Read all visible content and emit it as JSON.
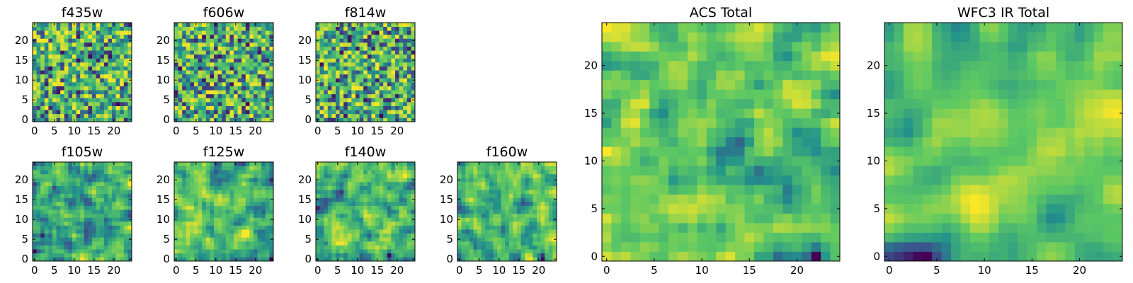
{
  "chart_data": [
    {
      "type": "heatmap",
      "title": "f435w",
      "grid_size": 25,
      "xlim": [
        0,
        24
      ],
      "ylim": [
        0,
        24
      ],
      "xticks": [
        "0",
        "5",
        "10",
        "15",
        "20"
      ],
      "yticks": [
        "0",
        "5",
        "10",
        "15",
        "20"
      ],
      "colormap": [
        "#440154",
        "#3b528b",
        "#21918c",
        "#5ec962",
        "#fde725"
      ],
      "seed": 11,
      "smooth": 0
    },
    {
      "type": "heatmap",
      "title": "f606w",
      "grid_size": 25,
      "xlim": [
        0,
        24
      ],
      "ylim": [
        0,
        24
      ],
      "xticks": [
        "0",
        "5",
        "10",
        "15",
        "20"
      ],
      "yticks": [
        "0",
        "5",
        "10",
        "15",
        "20"
      ],
      "colormap": [
        "#440154",
        "#3b528b",
        "#21918c",
        "#5ec962",
        "#fde725"
      ],
      "seed": 23,
      "smooth": 0
    },
    {
      "type": "heatmap",
      "title": "f814w",
      "grid_size": 25,
      "xlim": [
        0,
        24
      ],
      "ylim": [
        0,
        24
      ],
      "xticks": [
        "0",
        "5",
        "10",
        "15",
        "20"
      ],
      "yticks": [
        "0",
        "5",
        "10",
        "15",
        "20"
      ],
      "colormap": [
        "#440154",
        "#3b528b",
        "#21918c",
        "#5ec962",
        "#fde725"
      ],
      "seed": 37,
      "smooth": 0
    },
    {
      "type": "heatmap",
      "title": "f105w",
      "grid_size": 25,
      "xlim": [
        0,
        24
      ],
      "ylim": [
        0,
        24
      ],
      "xticks": [
        "0",
        "5",
        "10",
        "15",
        "20"
      ],
      "yticks": [
        "0",
        "5",
        "10",
        "15",
        "20"
      ],
      "colormap": [
        "#440154",
        "#3b528b",
        "#21918c",
        "#5ec962",
        "#fde725"
      ],
      "seed": 41,
      "smooth": 1
    },
    {
      "type": "heatmap",
      "title": "f125w",
      "grid_size": 25,
      "xlim": [
        0,
        24
      ],
      "ylim": [
        0,
        24
      ],
      "xticks": [
        "0",
        "5",
        "10",
        "15",
        "20"
      ],
      "yticks": [
        "0",
        "5",
        "10",
        "15",
        "20"
      ],
      "colormap": [
        "#440154",
        "#3b528b",
        "#21918c",
        "#5ec962",
        "#fde725"
      ],
      "seed": 53,
      "smooth": 1
    },
    {
      "type": "heatmap",
      "title": "f140w",
      "grid_size": 25,
      "xlim": [
        0,
        24
      ],
      "ylim": [
        0,
        24
      ],
      "xticks": [
        "0",
        "5",
        "10",
        "15",
        "20"
      ],
      "yticks": [
        "0",
        "5",
        "10",
        "15",
        "20"
      ],
      "colormap": [
        "#440154",
        "#3b528b",
        "#21918c",
        "#5ec962",
        "#fde725"
      ],
      "seed": 67,
      "smooth": 1
    },
    {
      "type": "heatmap",
      "title": "f160w",
      "grid_size": 25,
      "xlim": [
        0,
        24
      ],
      "ylim": [
        0,
        24
      ],
      "xticks": [
        "0",
        "5",
        "10",
        "15",
        "20"
      ],
      "yticks": [
        "0",
        "5",
        "10",
        "15",
        "20"
      ],
      "colormap": [
        "#440154",
        "#3b528b",
        "#21918c",
        "#5ec962",
        "#fde725"
      ],
      "seed": 79,
      "smooth": 1
    },
    {
      "type": "heatmap",
      "title": "ACS Total",
      "grid_size": 25,
      "xlim": [
        0,
        24
      ],
      "ylim": [
        0,
        24
      ],
      "xticks": [
        "0",
        "5",
        "10",
        "15",
        "20"
      ],
      "yticks": [
        "0",
        "5",
        "10",
        "15",
        "20"
      ],
      "colormap": [
        "#440154",
        "#3b528b",
        "#21918c",
        "#5ec962",
        "#fde725"
      ],
      "seed": 83,
      "smooth": 1
    },
    {
      "type": "heatmap",
      "title": "WFC3 IR Total",
      "grid_size": 25,
      "xlim": [
        0,
        24
      ],
      "ylim": [
        0,
        24
      ],
      "xticks": [
        "0",
        "5",
        "10",
        "15",
        "20"
      ],
      "yticks": [
        "0",
        "5",
        "10",
        "15",
        "20"
      ],
      "colormap": [
        "#440154",
        "#3b528b",
        "#21918c",
        "#5ec962",
        "#fde725"
      ],
      "seed": 97,
      "smooth": 2
    }
  ]
}
